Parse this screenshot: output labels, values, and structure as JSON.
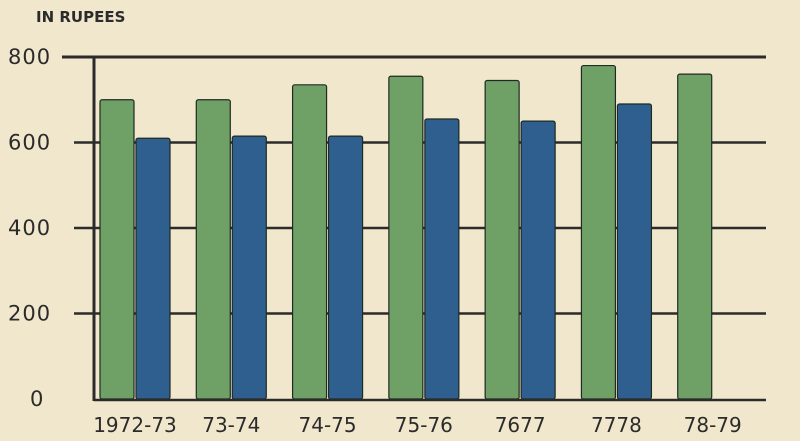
{
  "chart_data": {
    "type": "bar",
    "unit_label": "IN RUPEES",
    "categories": [
      "1972-73",
      "73-74",
      "74-75",
      "75-76",
      "76-77",
      "77-78",
      "78-79"
    ],
    "category_labels": [
      "1972-73",
      "73-74",
      "74-75",
      "75-76",
      "7677",
      "7778",
      "78-79"
    ],
    "series": [
      {
        "color": "#6fa066",
        "values": [
          700,
          700,
          735,
          755,
          745,
          780,
          760
        ]
      },
      {
        "color": "#2f5f8f",
        "values": [
          610,
          615,
          615,
          655,
          650,
          690,
          null
        ]
      }
    ],
    "yticks": [
      0,
      200,
      400,
      600,
      800
    ],
    "ytick_labels": [
      "0",
      "200",
      "400",
      "600",
      "800"
    ],
    "ylim": [
      0,
      800
    ],
    "grid": true,
    "colors": {
      "background": "#f1e7cc",
      "axis": "#2b2b2b"
    }
  }
}
